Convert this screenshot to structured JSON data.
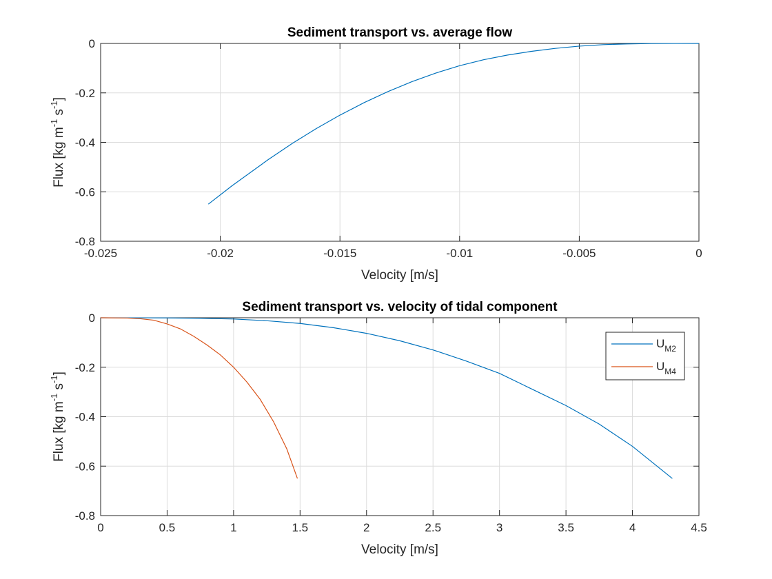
{
  "chart_data": [
    {
      "type": "line",
      "title": "Sediment transport vs. average flow",
      "xlabel": "Velocity [m/s]",
      "ylabel": "Flux [kg m^-1 s^-1]",
      "ylabel_parts": {
        "pre": "Flux [kg m",
        "sup1": "-1",
        "mid": " s",
        "sup2": "-1",
        "post": "]"
      },
      "xlim": [
        -0.025,
        0
      ],
      "ylim": [
        -0.8,
        0
      ],
      "xticks": [
        -0.025,
        -0.02,
        -0.015,
        -0.01,
        -0.005,
        0
      ],
      "xtick_labels": [
        "-0.025",
        "-0.02",
        "-0.015",
        "-0.01",
        "-0.005",
        "0"
      ],
      "yticks": [
        -0.8,
        -0.6,
        -0.4,
        -0.2,
        0
      ],
      "ytick_labels": [
        "-0.8",
        "-0.6",
        "-0.4",
        "-0.2",
        "0"
      ],
      "grid": true,
      "series": [
        {
          "color": "#0072BD",
          "x": [
            -0.0205,
            -0.0195,
            -0.018,
            -0.017,
            -0.016,
            -0.015,
            -0.014,
            -0.013,
            -0.012,
            -0.011,
            -0.01,
            -0.009,
            -0.008,
            -0.007,
            -0.006,
            -0.005,
            -0.004,
            -0.003,
            -0.002,
            -0.001,
            0
          ],
          "y": [
            -0.65,
            -0.575,
            -0.47,
            -0.405,
            -0.345,
            -0.29,
            -0.24,
            -0.195,
            -0.155,
            -0.12,
            -0.09,
            -0.066,
            -0.047,
            -0.032,
            -0.02,
            -0.011,
            -0.005,
            -0.002,
            -0.0005,
            -0.0001,
            0
          ]
        }
      ]
    },
    {
      "type": "line",
      "title": "Sediment transport vs. velocity of tidal component",
      "xlabel": "Velocity [m/s]",
      "ylabel": "Flux [kg m^-1 s^-1]",
      "ylabel_parts": {
        "pre": "Flux [kg m",
        "sup1": "-1",
        "mid": " s",
        "sup2": "-1",
        "post": "]"
      },
      "xlim": [
        0,
        4.5
      ],
      "ylim": [
        -0.8,
        0
      ],
      "xticks": [
        0,
        0.5,
        1,
        1.5,
        2,
        2.5,
        3,
        3.5,
        4,
        4.5
      ],
      "xtick_labels": [
        "0",
        "0.5",
        "1",
        "1.5",
        "2",
        "2.5",
        "3",
        "3.5",
        "4",
        "4.5"
      ],
      "yticks": [
        -0.8,
        -0.6,
        -0.4,
        -0.2,
        0
      ],
      "ytick_labels": [
        "-0.8",
        "-0.6",
        "-0.4",
        "-0.2",
        "0"
      ],
      "grid": true,
      "legend": {
        "placement": "top-right"
      },
      "series": [
        {
          "name": "U_M2",
          "label_main": "U",
          "label_sub": "M2",
          "color": "#0072BD",
          "x": [
            0,
            0.25,
            0.5,
            0.75,
            1.0,
            1.25,
            1.5,
            1.75,
            2.0,
            2.25,
            2.5,
            2.75,
            3.0,
            3.25,
            3.5,
            3.75,
            4.0,
            4.3
          ],
          "y": [
            0,
            -0.0001,
            -0.0006,
            -0.002,
            -0.005,
            -0.012,
            -0.023,
            -0.04,
            -0.063,
            -0.093,
            -0.13,
            -0.175,
            -0.225,
            -0.29,
            -0.355,
            -0.43,
            -0.52,
            -0.65
          ]
        },
        {
          "name": "U_M4",
          "label_main": "U",
          "label_sub": "M4",
          "color": "#D95319",
          "x": [
            0,
            0.2,
            0.3,
            0.4,
            0.5,
            0.6,
            0.7,
            0.8,
            0.9,
            1.0,
            1.1,
            1.2,
            1.3,
            1.4,
            1.48
          ],
          "y": [
            0,
            -0.001,
            -0.004,
            -0.01,
            -0.025,
            -0.045,
            -0.075,
            -0.11,
            -0.15,
            -0.2,
            -0.26,
            -0.33,
            -0.42,
            -0.53,
            -0.65
          ]
        }
      ]
    }
  ]
}
